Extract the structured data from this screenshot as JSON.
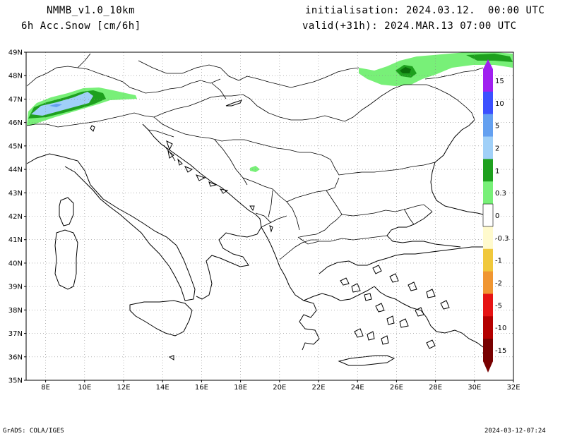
{
  "header": {
    "model": "NMMB_v1.0_10km",
    "field": "6h Acc.Snow [cm/6h]",
    "init": "initialisation: 2024.03.12.  00:00 UTC",
    "valid": "valid(+31h): 2024.MAR.13 07:00 UTC"
  },
  "footer": {
    "credit": "GrADS: COLA/IGES",
    "timestamp": "2024-03-12-07:24"
  },
  "axes": {
    "lat_labels": [
      "49N",
      "48N",
      "47N",
      "46N",
      "45N",
      "44N",
      "43N",
      "42N",
      "41N",
      "40N",
      "39N",
      "38N",
      "37N",
      "36N",
      "35N"
    ],
    "lon_labels": [
      "8E",
      "10E",
      "12E",
      "14E",
      "16E",
      "18E",
      "20E",
      "22E",
      "24E",
      "26E",
      "28E",
      "30E",
      "32E"
    ],
    "lat_range": [
      35,
      49
    ],
    "lon_range": [
      7,
      32
    ]
  },
  "legend": {
    "labels": [
      "15",
      "10",
      "5",
      "2",
      "1",
      "0.3",
      "0",
      "-0.3",
      "-1",
      "-2",
      "-5",
      "-10",
      "-15"
    ],
    "colors": [
      "#a020f0",
      "#3c50ff",
      "#64a0f0",
      "#a0d0f8",
      "#1ea01e",
      "#78f078",
      "#ffffff",
      "#fffacd",
      "#f0c83c",
      "#f09632",
      "#e61414",
      "#b40000",
      "#780000"
    ]
  },
  "colors": {
    "snow_light": "#78f078",
    "snow_mid": "#1ea01e",
    "snow_dark": "#0a6e0a",
    "snow_lightblue": "#a0d0f8",
    "snow_blue": "#64a0f0"
  }
}
